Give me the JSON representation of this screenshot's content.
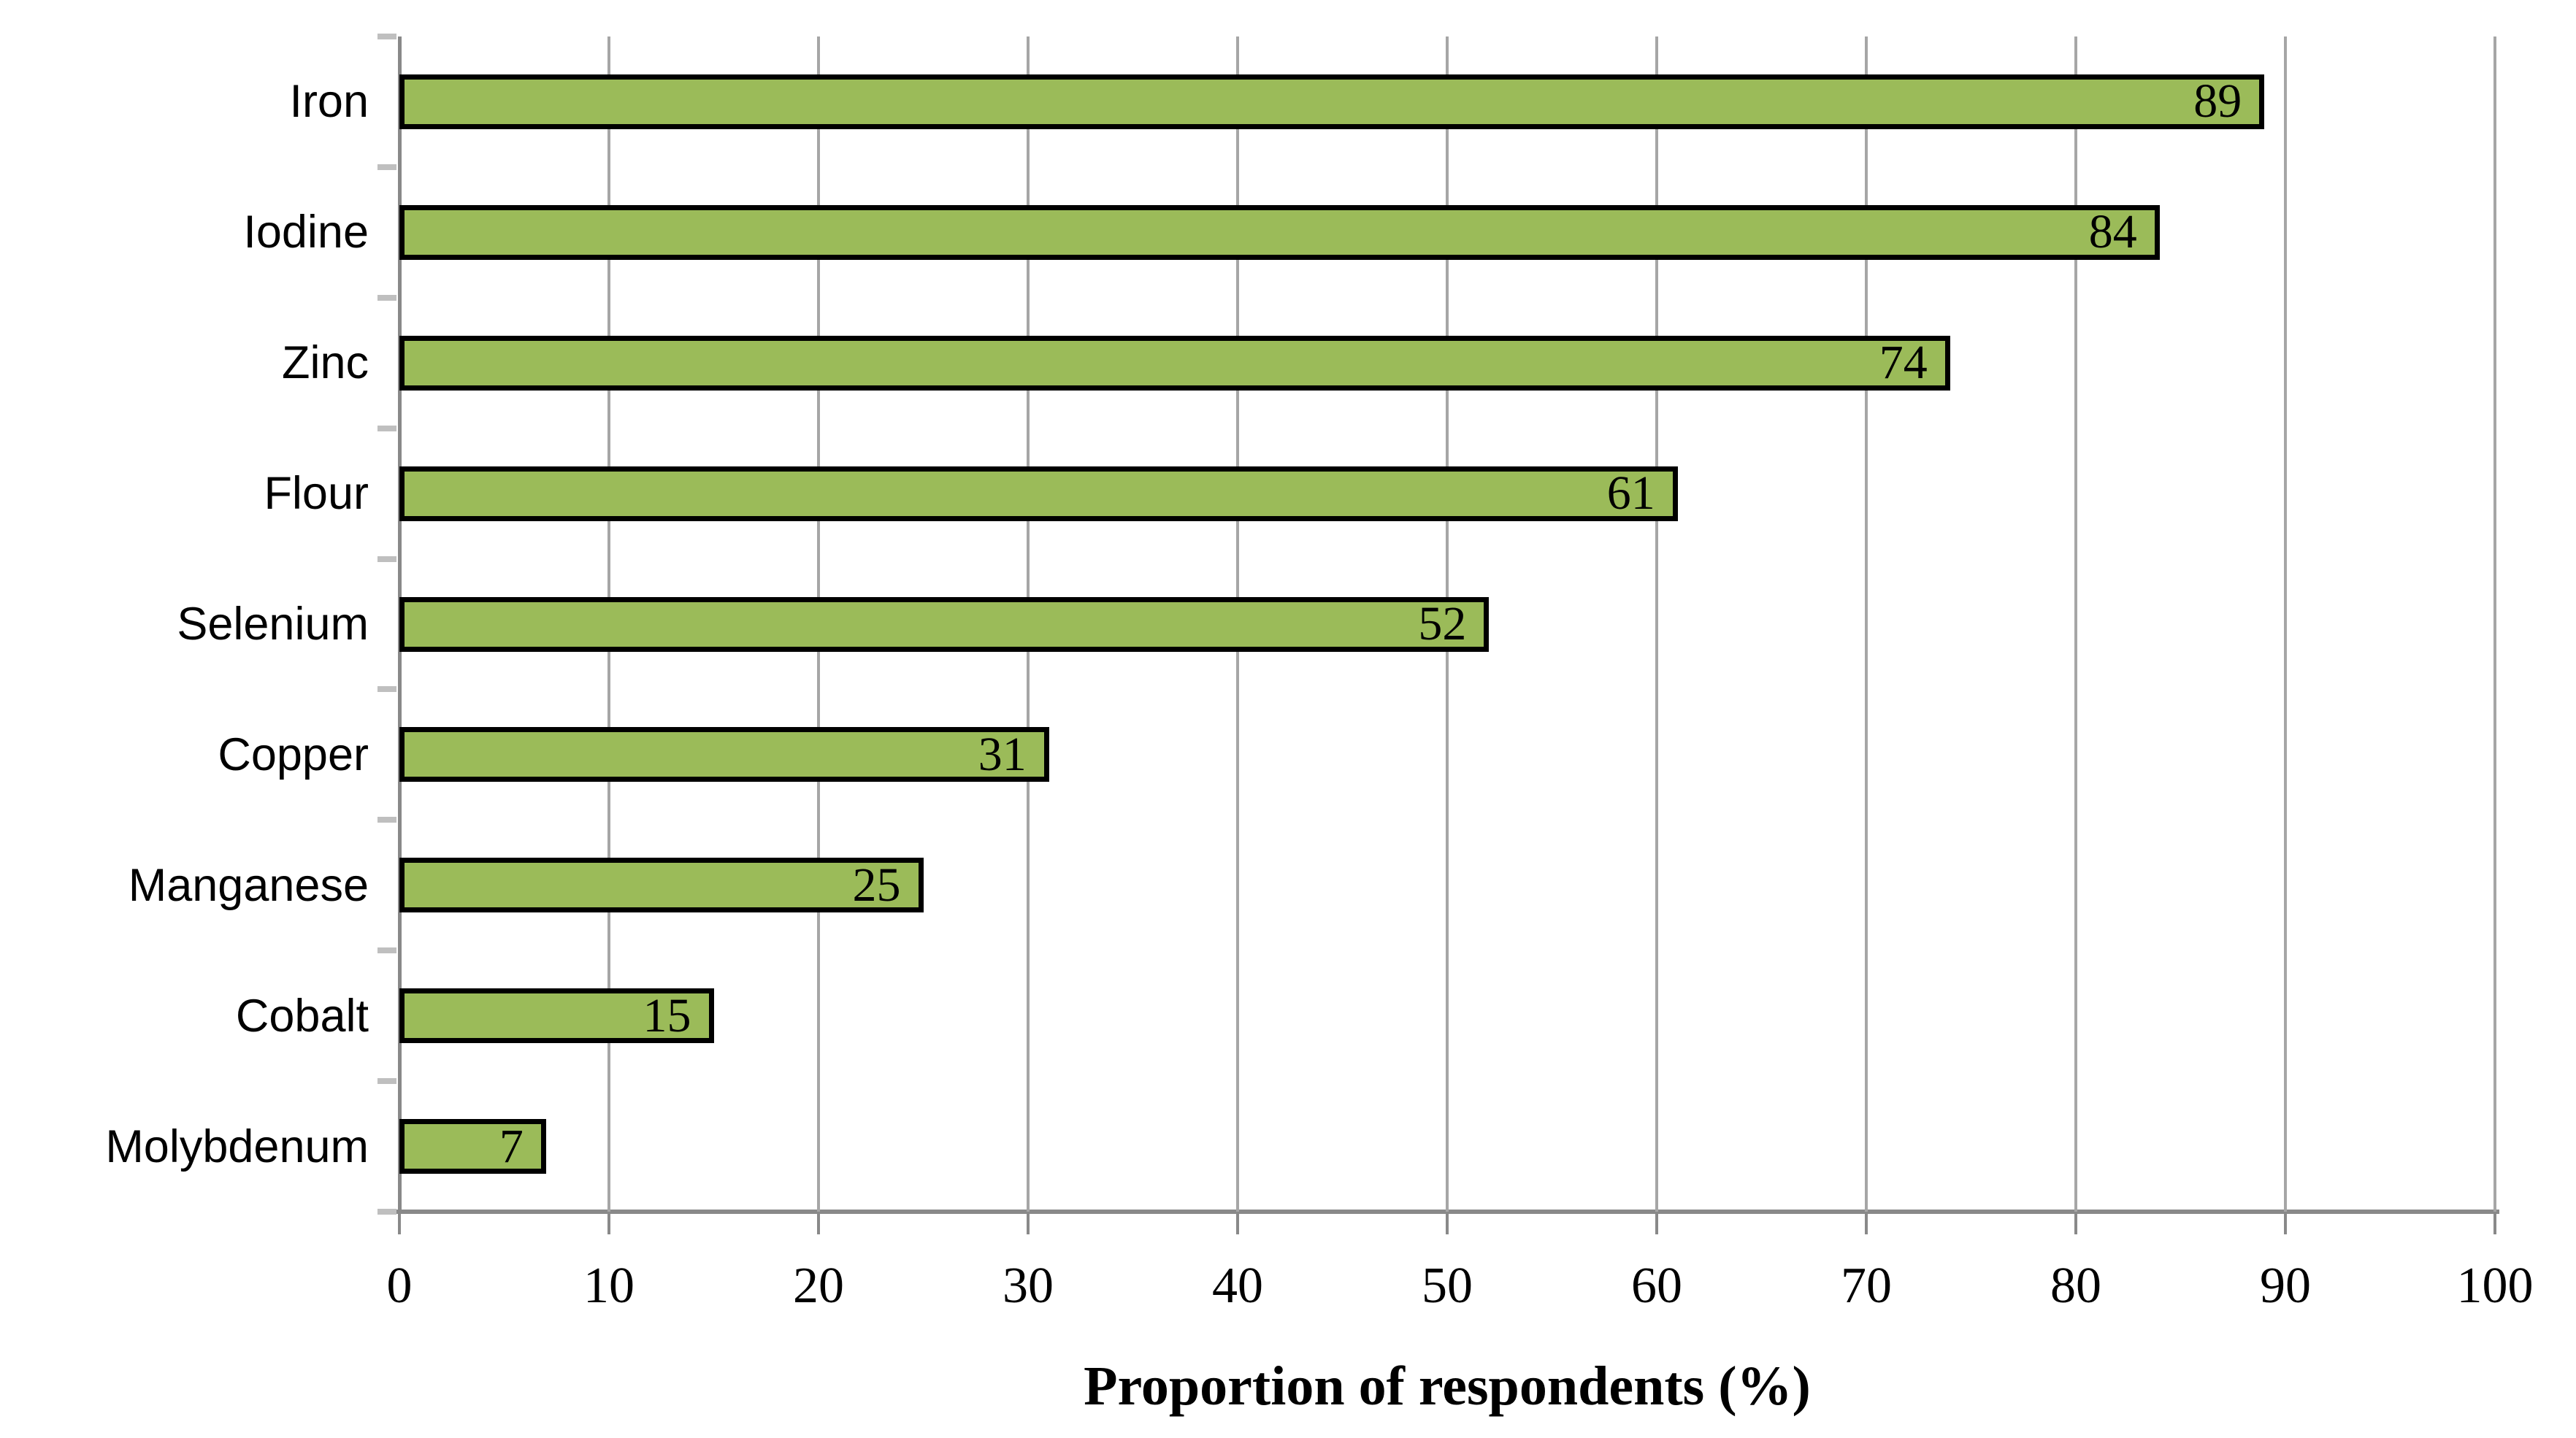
{
  "chart_data": {
    "type": "bar",
    "orientation": "horizontal",
    "title": "",
    "xlabel": "Proportion of respondents (%)",
    "ylabel": "",
    "categories": [
      "Iron",
      "Iodine",
      "Zinc",
      "Flour",
      "Selenium",
      "Copper",
      "Manganese",
      "Cobalt",
      "Molybdenum"
    ],
    "values": [
      89,
      84,
      74,
      61,
      52,
      31,
      25,
      15,
      7
    ],
    "data_labels_shown": true,
    "data_label_position": "inside-end",
    "xlim": [
      0,
      100
    ],
    "xticks": [
      0,
      10,
      20,
      30,
      40,
      50,
      60,
      70,
      80,
      90,
      100
    ],
    "grid": "vertical",
    "legend": "none",
    "colors": {
      "bar": "#9BBB59",
      "bar_border": "#000000",
      "gridline": "#A6A6A6",
      "axis_line": "#898989",
      "y_tick_mark": "#BFBFBF",
      "text": "#000000",
      "background": "#FFFFFF"
    }
  }
}
